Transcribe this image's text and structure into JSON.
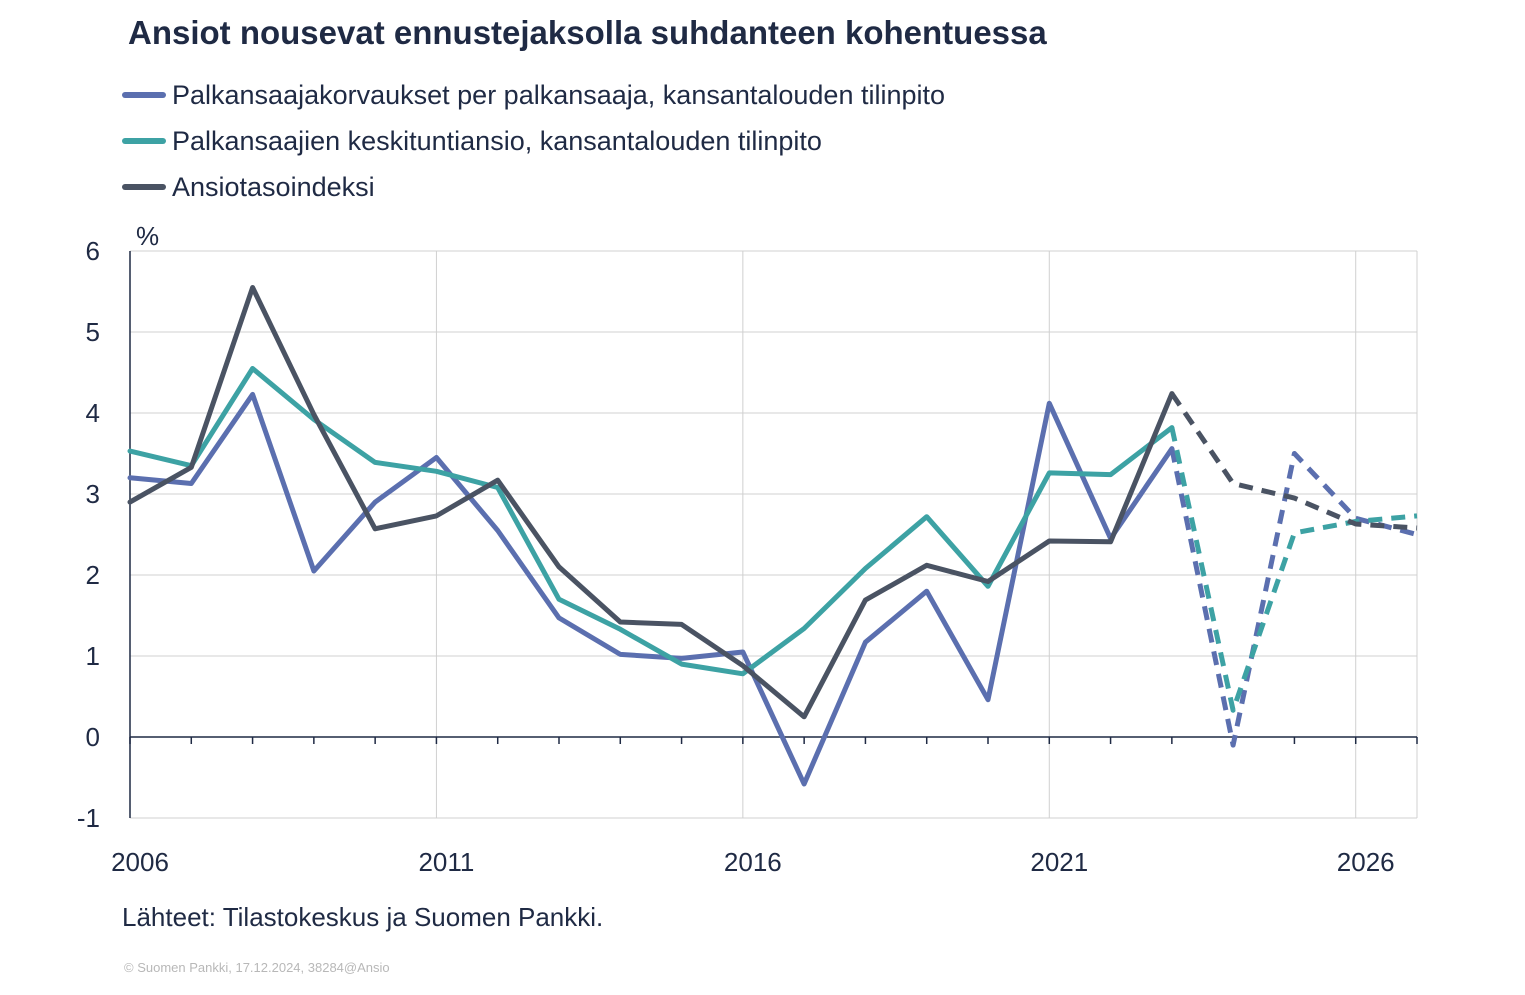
{
  "chart_data": {
    "type": "line",
    "title": "Ansiot nousevat ennustejaksolla suhdanteen kohentuessa",
    "ylabel": "%",
    "xlabel": "",
    "ylim": [
      -1,
      6
    ],
    "yticks": [
      -1,
      0,
      1,
      2,
      3,
      4,
      5,
      6
    ],
    "xlim": [
      2006,
      2027
    ],
    "xticks": [
      2006,
      2011,
      2016,
      2021,
      2026
    ],
    "forecast_start": 2023,
    "x": [
      2006,
      2007,
      2008,
      2009,
      2010,
      2011,
      2012,
      2013,
      2014,
      2015,
      2016,
      2017,
      2018,
      2019,
      2020,
      2021,
      2022,
      2023,
      2024,
      2025,
      2026,
      2027
    ],
    "series": [
      {
        "name": "Palkansaajakorvaukset per palkansaaja, kansantalouden tilinpito",
        "color": "#5b6faf",
        "values": [
          3.2,
          3.13,
          4.23,
          2.05,
          2.9,
          3.45,
          2.55,
          1.47,
          1.02,
          0.97,
          1.05,
          -0.58,
          1.17,
          1.8,
          0.46,
          4.12,
          2.45,
          3.56,
          -0.1,
          3.5,
          2.7,
          2.5
        ]
      },
      {
        "name": "Palkansaajien keskituntiansio, kansantalouden tilinpito",
        "color": "#3da2a4",
        "values": [
          3.53,
          3.35,
          4.55,
          3.92,
          3.39,
          3.28,
          3.08,
          1.7,
          1.33,
          0.9,
          0.78,
          1.34,
          2.08,
          2.72,
          1.86,
          3.26,
          3.24,
          3.82,
          0.33,
          2.52,
          2.66,
          2.73
        ]
      },
      {
        "name": "Ansiotasoindeksi",
        "color": "#4a5363",
        "values": [
          2.9,
          3.33,
          5.55,
          3.98,
          2.57,
          2.73,
          3.17,
          2.1,
          1.42,
          1.39,
          0.88,
          0.25,
          1.69,
          2.12,
          1.92,
          2.42,
          2.41,
          4.24,
          3.13,
          2.95,
          2.63,
          2.58
        ]
      }
    ],
    "source": "Lähteet: Tilastokeskus ja Suomen Pankki.",
    "copyright": "© Suomen Pankki, 17.12.2024, 38284@Ansio"
  }
}
